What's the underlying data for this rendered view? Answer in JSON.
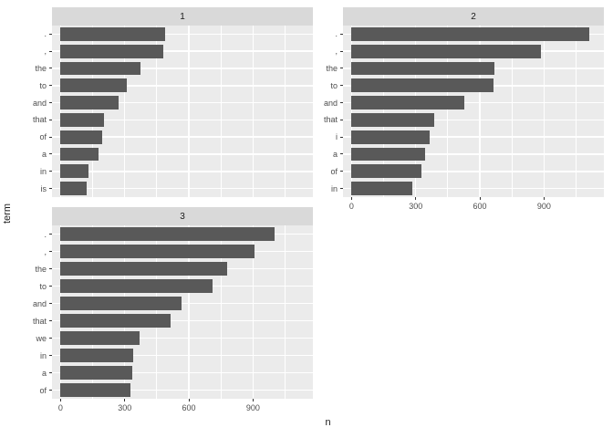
{
  "figure": {
    "y_axis_title": "term",
    "x_axis_title": "n",
    "x_ticks": [
      0,
      300,
      600,
      900
    ],
    "x_minor_ticks": [
      150,
      450,
      750,
      1050
    ],
    "colors": {
      "bar": "#595959",
      "panel_background": "#EBEBEB",
      "strip_background": "#D9D9D9",
      "gridline": "#FFFFFF",
      "tick_label": "#4D4D4D",
      "axis_title": "#1A1A1A"
    }
  },
  "chart_data": [
    {
      "type": "bar",
      "orientation": "horizontal",
      "facet": "1",
      "categories": [
        ".",
        ",",
        "the",
        "to",
        "and",
        "that",
        "of",
        "a",
        "in",
        "is"
      ],
      "values": [
        487,
        479,
        372,
        308,
        270,
        203,
        193,
        176,
        131,
        122
      ],
      "xlabel": "n",
      "ylabel": "term",
      "xlim": [
        0,
        1150
      ],
      "grid": "on",
      "legend": "none"
    },
    {
      "type": "bar",
      "orientation": "horizontal",
      "facet": "2",
      "categories": [
        ".",
        ",",
        "the",
        "to",
        "and",
        "that",
        "i",
        "a",
        "of",
        "in"
      ],
      "values": [
        1110,
        885,
        670,
        663,
        529,
        388,
        367,
        344,
        327,
        286
      ],
      "xlabel": "n",
      "ylabel": "term",
      "xlim": [
        0,
        1150
      ],
      "grid": "on",
      "legend": "none"
    },
    {
      "type": "bar",
      "orientation": "horizontal",
      "facet": "3",
      "categories": [
        ".",
        ",",
        "the",
        "to",
        "and",
        "that",
        "we",
        "in",
        "a",
        "of"
      ],
      "values": [
        1000,
        905,
        777,
        712,
        566,
        514,
        368,
        338,
        334,
        325
      ],
      "xlabel": "n",
      "ylabel": "term",
      "xlim": [
        0,
        1150
      ],
      "grid": "on",
      "legend": "none"
    }
  ]
}
